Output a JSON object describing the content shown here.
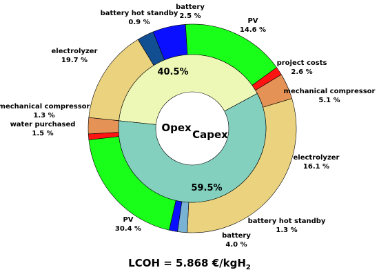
{
  "chart_data": {
    "type": "pie",
    "inner_ring": [
      {
        "label": "40.5%",
        "value": 40.5,
        "color": "#eef8b6"
      },
      {
        "label": "59.5%",
        "value": 59.5,
        "color": "#83d0bf"
      }
    ],
    "center_labels": [
      "Opex",
      "Capex"
    ],
    "outer_ring": [
      {
        "name": "PV",
        "pct": "14.6 %",
        "value": 14.6,
        "color": "#ead27e"
      },
      {
        "name": "project costs",
        "pct": "2.6 %",
        "value": 2.6,
        "color": "#124f92"
      },
      {
        "name": "mechanical compressor",
        "pct": "5.1 %",
        "value": 5.1,
        "color": "#0a10ff"
      },
      {
        "name": "electrolyzer",
        "pct": "16.1 %",
        "value": 16.1,
        "color": "#19ff19"
      },
      {
        "name": "battery hot standby",
        "pct": "1.3 %",
        "value": 1.3,
        "color": "#ff1414"
      },
      {
        "name": "battery",
        "pct": "4.0 %",
        "value": 4.0,
        "color": "#e59257"
      },
      {
        "name": "PV",
        "pct": "30.4 %",
        "value": 30.4,
        "color": "#ead27e"
      },
      {
        "name": "water purchased",
        "pct": "1.5 %",
        "value": 1.5,
        "color": "#7ab2d4"
      },
      {
        "name": "mechanical compressor",
        "pct": "1.3 %",
        "value": 1.3,
        "color": "#0a10ff"
      },
      {
        "name": "electrolyzer",
        "pct": "19.7 %",
        "value": 19.7,
        "color": "#19ff19"
      },
      {
        "name": "battery hot standby",
        "pct": "0.9 %",
        "value": 0.9,
        "color": "#ff1414"
      },
      {
        "name": "battery",
        "pct": "2.5 %",
        "value": 2.5,
        "color": "#e59257"
      }
    ]
  },
  "footer": {
    "lcoh_text": "LCOH = 5.868 €/kgH",
    "lcoh_sub": "2"
  }
}
